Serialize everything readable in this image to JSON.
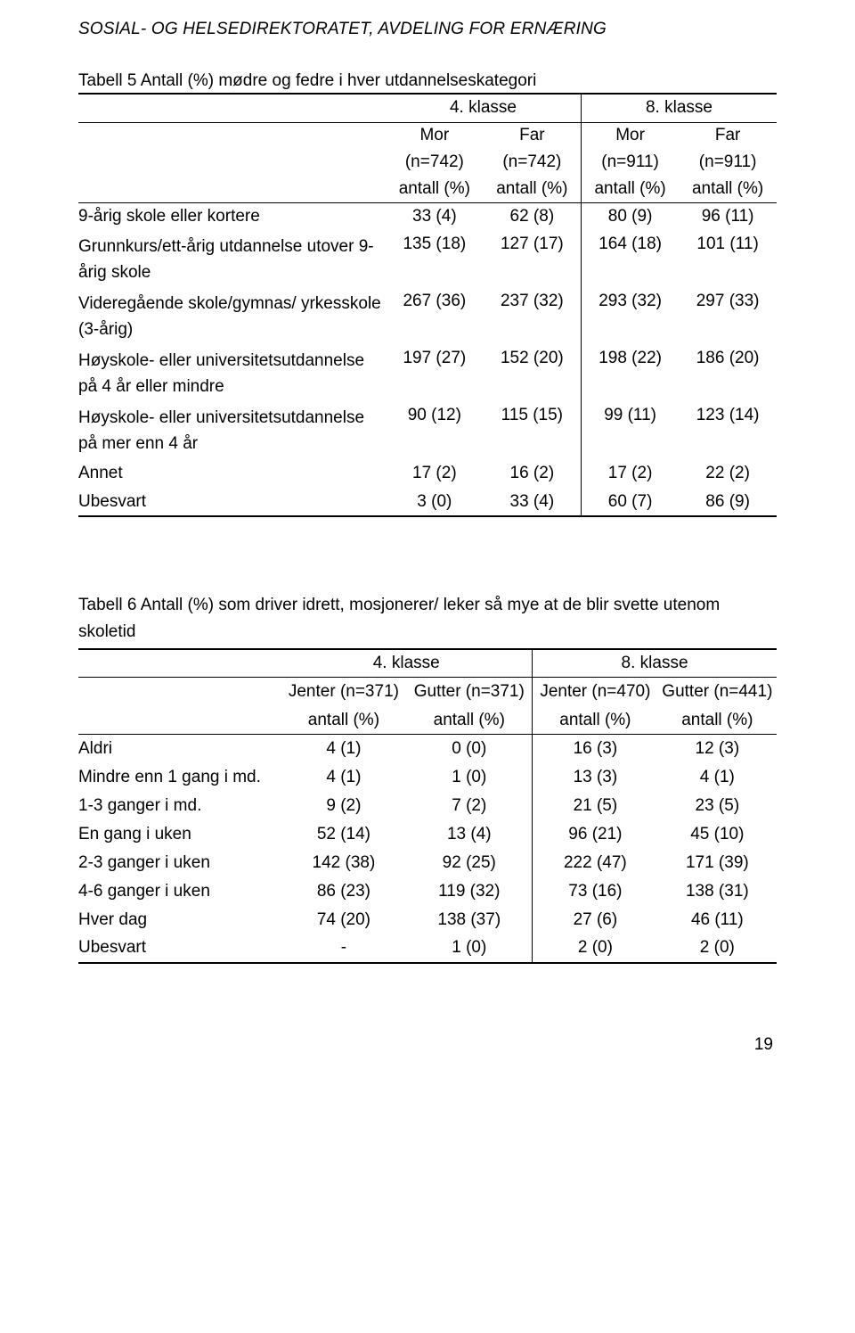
{
  "header": "SOSIAL- OG HELSEDIREKTORATET, AVDELING FOR ERNÆRING",
  "page_number": "19",
  "table5": {
    "caption": "Tabell 5 Antall (%) mødre og fedre i hver utdannelseskategori",
    "grade_a": "4. klasse",
    "grade_b": "8. klasse",
    "col_headers": {
      "mor_a": "Mor",
      "far_a": "Far",
      "mor_b": "Mor",
      "far_b": "Far",
      "n_a1": "(n=742)",
      "n_a2": "(n=742)",
      "n_b1": "(n=911)",
      "n_b2": "(n=911)",
      "u": "antall (%)"
    },
    "rows": [
      {
        "label": "9-årig skole eller kortere",
        "a1": "33 (4)",
        "a2": "62 (8)",
        "b1": "80 (9)",
        "b2": "96 (11)"
      },
      {
        "label": "Grunnkurs/ett-årig utdannelse utover 9-årig skole",
        "a1": "135 (18)",
        "a2": "127 (17)",
        "b1": "164 (18)",
        "b2": "101 (11)",
        "tall": true,
        "valign": "top"
      },
      {
        "label": "Videregående skole/gymnas/ yrkesskole (3-årig)",
        "a1": "267 (36)",
        "a2": "237 (32)",
        "b1": "293 (32)",
        "b2": "297 (33)",
        "tall": true,
        "valign": "top"
      },
      {
        "label": "Høyskole- eller universitetsutdannelse på 4 år eller mindre",
        "a1": "197 (27)",
        "a2": "152 (20)",
        "b1": "198 (22)",
        "b2": "186 (20)",
        "tall": true,
        "valign": "top"
      },
      {
        "label": "Høyskole- eller universitetsutdannelse på mer enn 4 år",
        "a1": "90 (12)",
        "a2": "115 (15)",
        "b1": "99 (11)",
        "b2": "123 (14)",
        "tall": true,
        "valign": "top"
      },
      {
        "label": "Annet",
        "a1": "17 (2)",
        "a2": "16 (2)",
        "b1": "17 (2)",
        "b2": "22 (2)"
      },
      {
        "label": "Ubesvart",
        "a1": "3 (0)",
        "a2": "33 (4)",
        "b1": "60 (7)",
        "b2": "86 (9)"
      }
    ]
  },
  "table6": {
    "caption_line1": "Tabell 6 Antall (%) som driver idrett, mosjonerer/ leker så mye at de blir svette utenom",
    "caption_line2": "skoletid",
    "grade_a": "4. klasse",
    "grade_b": "8. klasse",
    "col_headers": {
      "j_a": "Jenter (n=371)",
      "g_a": "Gutter (n=371)",
      "j_b": "Jenter (n=470)",
      "g_b": "Gutter (n=441)",
      "u": "antall (%)"
    },
    "rows": [
      {
        "label": "Aldri",
        "a1": "4 (1)",
        "a2": "0 (0)",
        "b1": "16 (3)",
        "b2": "12 (3)"
      },
      {
        "label": "Mindre enn 1 gang i md.",
        "a1": "4 (1)",
        "a2": "1 (0)",
        "b1": "13 (3)",
        "b2": "4 (1)"
      },
      {
        "label": "1-3 ganger i md.",
        "a1": "9 (2)",
        "a2": "7 (2)",
        "b1": "21 (5)",
        "b2": "23 (5)"
      },
      {
        "label": "En gang i uken",
        "a1": "52 (14)",
        "a2": "13 (4)",
        "b1": "96 (21)",
        "b2": "45 (10)"
      },
      {
        "label": "2-3 ganger i uken",
        "a1": "142 (38)",
        "a2": "92 (25)",
        "b1": "222 (47)",
        "b2": "171 (39)"
      },
      {
        "label": "4-6 ganger i uken",
        "a1": "86 (23)",
        "a2": "119 (32)",
        "b1": "73 (16)",
        "b2": "138 (31)"
      },
      {
        "label": "Hver dag",
        "a1": "74 (20)",
        "a2": "138 (37)",
        "b1": "27 (6)",
        "b2": "46 (11)"
      },
      {
        "label": "Ubesvart",
        "a1": "-",
        "a2": "1 (0)",
        "b1": "2 (0)",
        "b2": "2 (0)"
      }
    ]
  }
}
